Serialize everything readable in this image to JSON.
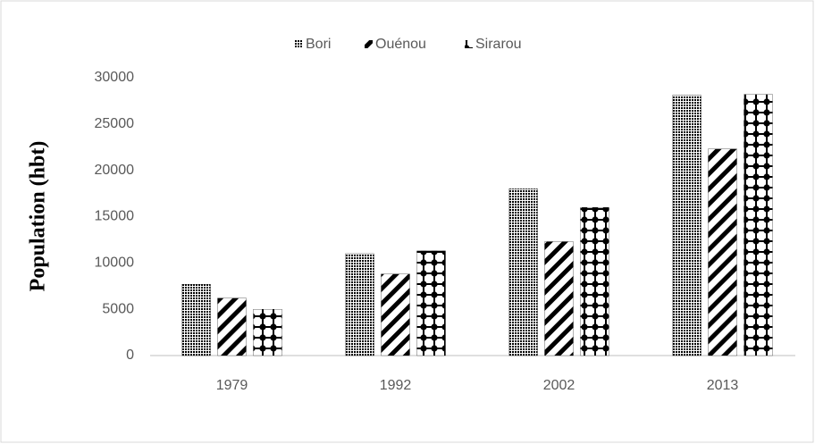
{
  "chart_data": {
    "type": "bar",
    "y_label": "Population (hbt)",
    "categories": [
      "1979",
      "1992",
      "2002",
      "2013"
    ],
    "series": [
      {
        "name": "Bori",
        "color": "#000000",
        "values": [
          7700,
          11000,
          18000,
          28100
        ]
      },
      {
        "name": "Ouénou",
        "color": "#000000",
        "values": [
          6200,
          8800,
          12300,
          22300
        ]
      },
      {
        "name": "Sirarou",
        "color": "#000000",
        "values": [
          5000,
          11300,
          16000,
          28200
        ]
      }
    ],
    "ylim": [
      0,
      30000
    ],
    "yticks": [
      0,
      5000,
      10000,
      15000,
      20000,
      25000,
      30000
    ],
    "legend": "top"
  }
}
